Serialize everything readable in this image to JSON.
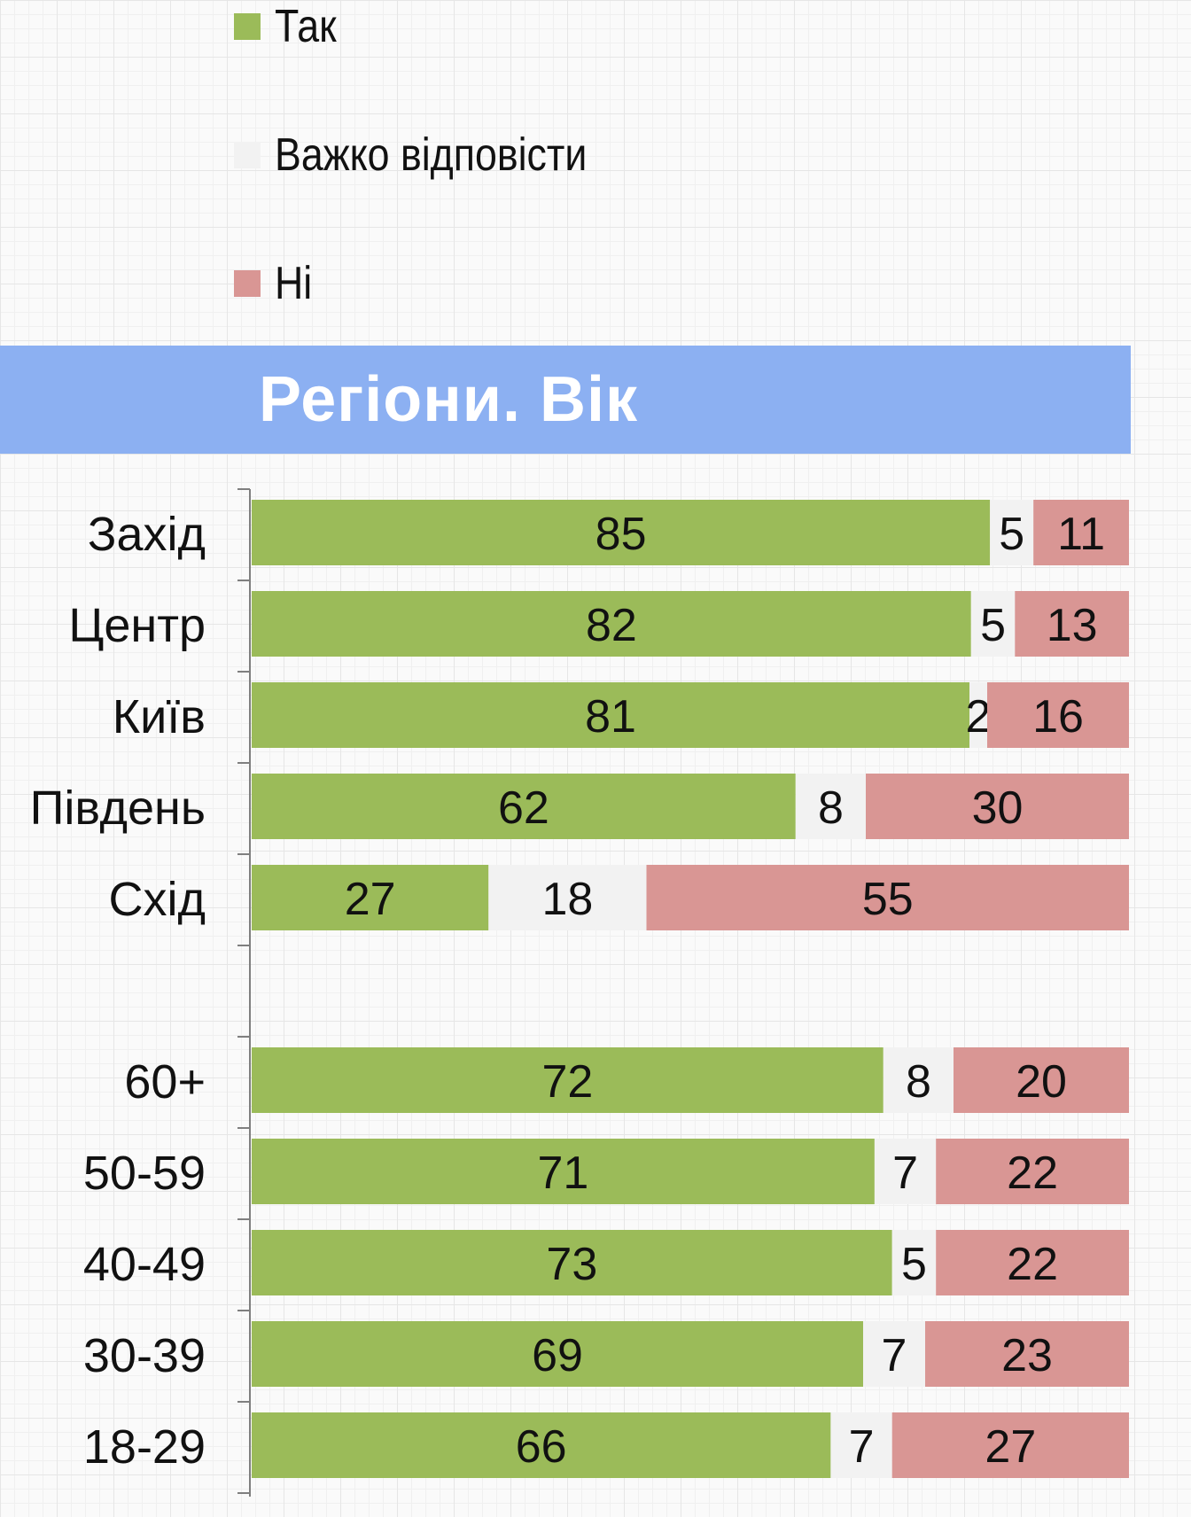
{
  "legend": [
    {
      "label": "Так",
      "color": "#9bbb59"
    },
    {
      "label": "Важко відповісти",
      "color": "#f2f2f2"
    },
    {
      "label": "Ні",
      "color": "#d99694"
    }
  ],
  "banner": {
    "title": "Регіони. Вік",
    "color": "#8cb0f2"
  },
  "chart_data": {
    "type": "bar",
    "orientation": "horizontal",
    "stacked": true,
    "categories": [
      "Захід",
      "Центр",
      "Київ",
      "Південь",
      "Схід",
      "",
      "60+",
      "50-59",
      "40-49",
      "30-39",
      "18-29"
    ],
    "series": [
      {
        "name": "Так",
        "color": "#9bbb59",
        "values": [
          85,
          82,
          81,
          62,
          27,
          null,
          72,
          71,
          73,
          69,
          66
        ]
      },
      {
        "name": "Важко відповісти",
        "color": "#f2f2f2",
        "values": [
          5,
          5,
          2,
          8,
          18,
          null,
          8,
          7,
          5,
          7,
          7
        ]
      },
      {
        "name": "Ні",
        "color": "#d99694",
        "values": [
          11,
          13,
          16,
          30,
          55,
          null,
          20,
          22,
          22,
          23,
          27
        ]
      }
    ],
    "data_labels": true,
    "legend_position": "top-left",
    "grid": false,
    "xlabel": "",
    "ylabel": ""
  }
}
